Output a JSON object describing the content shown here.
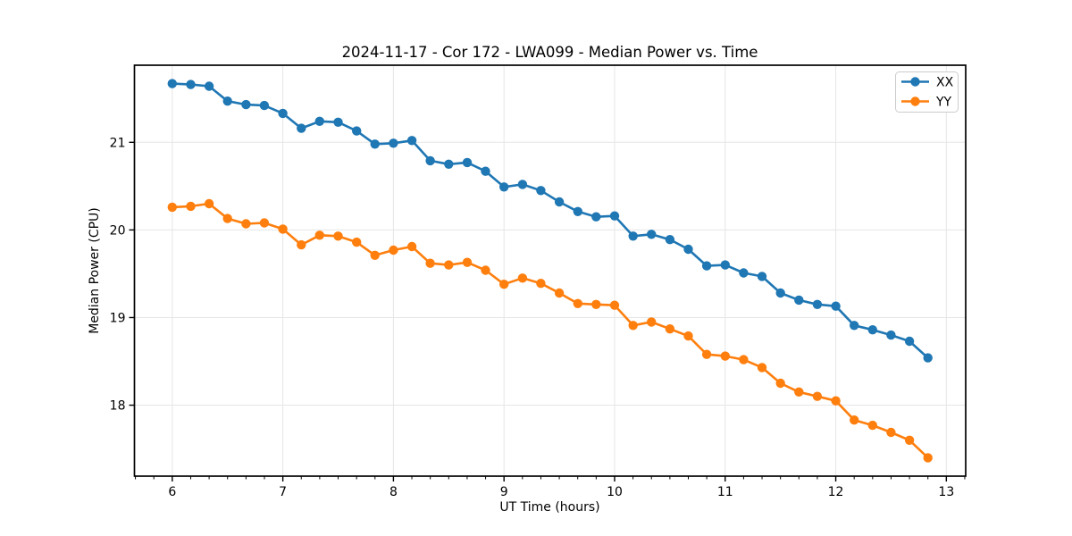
{
  "chart_data": {
    "type": "line",
    "title": "2024-11-17 - Cor 172 - LWA099 - Median Power vs. Time",
    "xlabel": "UT Time (hours)",
    "ylabel": "Median Power (CPU)",
    "xlim": [
      5.658,
      13.175
    ],
    "ylim": [
      17.19,
      21.88
    ],
    "xticks": [
      6,
      7,
      8,
      9,
      10,
      11,
      12,
      13
    ],
    "yticks": [
      18,
      19,
      20,
      21
    ],
    "minor_xtick_step_hours": 0.1667,
    "grid": true,
    "grid_color": "#e6e6e6",
    "spine_color": "#000000",
    "legend_position": "upper right",
    "x": [
      6.0,
      6.167,
      6.333,
      6.5,
      6.667,
      6.833,
      7.0,
      7.167,
      7.333,
      7.5,
      7.667,
      7.833,
      8.0,
      8.167,
      8.333,
      8.5,
      8.667,
      8.833,
      9.0,
      9.167,
      9.333,
      9.5,
      9.667,
      9.833,
      10.0,
      10.167,
      10.333,
      10.5,
      10.667,
      10.833,
      11.0,
      11.167,
      11.333,
      11.5,
      11.667,
      11.833,
      12.0,
      12.167,
      12.333,
      12.5,
      12.667,
      12.833
    ],
    "series": [
      {
        "name": "XX",
        "color": "#1f77b4",
        "values": [
          21.67,
          21.66,
          21.64,
          21.47,
          21.43,
          21.42,
          21.33,
          21.16,
          21.24,
          21.23,
          21.13,
          20.98,
          20.99,
          21.02,
          20.79,
          20.75,
          20.77,
          20.67,
          20.49,
          20.52,
          20.45,
          20.32,
          20.21,
          20.15,
          20.16,
          19.93,
          19.95,
          19.89,
          19.78,
          19.59,
          19.6,
          19.51,
          19.47,
          19.28,
          19.2,
          19.15,
          19.13,
          18.91,
          18.86,
          18.8,
          18.73,
          18.54
        ]
      },
      {
        "name": "YY",
        "color": "#ff7f0e",
        "values": [
          20.26,
          20.27,
          20.3,
          20.13,
          20.07,
          20.08,
          20.01,
          19.83,
          19.94,
          19.93,
          19.86,
          19.71,
          19.77,
          19.81,
          19.62,
          19.6,
          19.63,
          19.54,
          19.38,
          19.45,
          19.39,
          19.28,
          19.16,
          19.15,
          19.14,
          18.91,
          18.95,
          18.87,
          18.79,
          18.58,
          18.56,
          18.52,
          18.43,
          18.25,
          18.15,
          18.1,
          18.05,
          17.83,
          17.77,
          17.69,
          17.6,
          17.4
        ]
      }
    ]
  }
}
